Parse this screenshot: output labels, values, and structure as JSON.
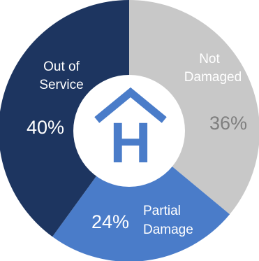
{
  "chart_data": {
    "type": "pie",
    "title": "",
    "slices": [
      {
        "name": "Not Damaged",
        "value": 36,
        "label_lines": [
          "Not",
          "Damaged"
        ],
        "pct_label": "36%",
        "color": "#c8c8c8",
        "label_color": "#ffffff",
        "pct_color": "#7f7f7f"
      },
      {
        "name": "Partial Damage",
        "value": 24,
        "label_lines": [
          "Partial",
          "Damage"
        ],
        "pct_label": "24%",
        "color": "#4a7cc9",
        "label_color": "#ffffff",
        "pct_color": "#ffffff"
      },
      {
        "name": "Out of Service",
        "value": 40,
        "label_lines": [
          "Out of",
          "Service"
        ],
        "pct_label": "40%",
        "color": "#1d3560",
        "label_color": "#ffffff",
        "pct_color": "#ffffff"
      }
    ],
    "center_icon": "hospital-house-icon",
    "center_letter": "H",
    "icon_color": "#4a7cc9"
  }
}
